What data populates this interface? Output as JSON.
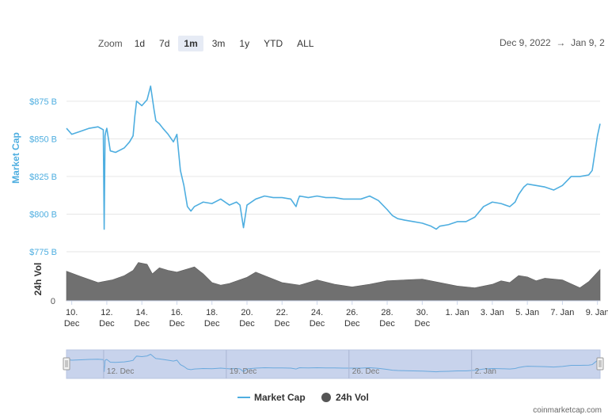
{
  "toolbar": {
    "zoom_label": "Zoom",
    "buttons": [
      "1d",
      "7d",
      "1m",
      "3m",
      "1y",
      "YTD",
      "ALL"
    ],
    "active": "1m",
    "range_start": "Dec 9, 2022",
    "range_arrow": "→",
    "range_end": "Jan 9, 2"
  },
  "footer": {
    "source": "coinmarketcap.com"
  },
  "colors": {
    "line": "#4eaee0",
    "volume": "#707070",
    "navigator_fill": "#c8d3ec",
    "navigator_line": "#6aa9dd"
  },
  "chart_data": {
    "type": "line",
    "title": "",
    "ylabel": "Market Cap",
    "ylabel_volume": "24h Vol",
    "ylim": [
      775,
      887
    ],
    "yticks": [
      775,
      800,
      825,
      850,
      875
    ],
    "ytick_labels": [
      "$775 B",
      "$800 B",
      "$825 B",
      "$850 B",
      "$875 B"
    ],
    "volume_ytick_labels": [
      "0"
    ],
    "xlim": [
      9.7,
      40.15
    ],
    "xticks": [
      {
        "x": 10,
        "l1": "10.",
        "l2": "Dec"
      },
      {
        "x": 12,
        "l1": "12.",
        "l2": "Dec"
      },
      {
        "x": 14,
        "l1": "14.",
        "l2": "Dec"
      },
      {
        "x": 16,
        "l1": "16.",
        "l2": "Dec"
      },
      {
        "x": 18,
        "l1": "18.",
        "l2": "Dec"
      },
      {
        "x": 20,
        "l1": "20.",
        "l2": "Dec"
      },
      {
        "x": 22,
        "l1": "22.",
        "l2": "Dec"
      },
      {
        "x": 24,
        "l1": "24.",
        "l2": "Dec"
      },
      {
        "x": 26,
        "l1": "26.",
        "l2": "Dec"
      },
      {
        "x": 28,
        "l1": "28.",
        "l2": "Dec"
      },
      {
        "x": 30,
        "l1": "30.",
        "l2": "Dec"
      },
      {
        "x": 32,
        "l1": "1. Jan",
        "l2": ""
      },
      {
        "x": 34,
        "l1": "3. Jan",
        "l2": ""
      },
      {
        "x": 36,
        "l1": "5. Jan",
        "l2": ""
      },
      {
        "x": 38,
        "l1": "7. Jan",
        "l2": ""
      },
      {
        "x": 40,
        "l1": "9. Jan",
        "l2": ""
      }
    ],
    "navigator_labels": [
      {
        "x": 12,
        "label": "12. Dec"
      },
      {
        "x": 19,
        "label": "19. Dec"
      },
      {
        "x": 26,
        "label": "26. Dec"
      },
      {
        "x": 33,
        "label": "2. Jan"
      }
    ],
    "legend": [
      "Market Cap",
      "24h Vol"
    ],
    "series": [
      {
        "name": "Market Cap",
        "x": [
          9.7,
          10.0,
          10.5,
          11.0,
          11.5,
          11.8,
          11.85,
          11.9,
          11.95,
          12.0,
          12.2,
          12.5,
          13.0,
          13.3,
          13.5,
          13.6,
          13.7,
          14.0,
          14.3,
          14.5,
          14.7,
          14.8,
          15.0,
          15.2,
          15.5,
          15.8,
          16.0,
          16.2,
          16.4,
          16.6,
          16.8,
          17.0,
          17.5,
          18.0,
          18.5,
          19.0,
          19.4,
          19.6,
          19.8,
          20.0,
          20.5,
          21.0,
          21.5,
          22.0,
          22.5,
          22.8,
          22.9,
          23.0,
          23.5,
          24.0,
          24.5,
          25.0,
          25.5,
          26.0,
          26.5,
          27.0,
          27.5,
          28.0,
          28.3,
          28.6,
          29.0,
          29.5,
          30.0,
          30.5,
          30.8,
          31.0,
          31.5,
          32.0,
          32.5,
          33.0,
          33.5,
          34.0,
          34.5,
          35.0,
          35.3,
          35.5,
          35.8,
          36.0,
          36.5,
          37.0,
          37.5,
          38.0,
          38.5,
          39.0,
          39.5,
          39.7,
          40.0,
          40.15
        ],
        "values": [
          857,
          853,
          855,
          857,
          858,
          856,
          790,
          852,
          855,
          857,
          842,
          841,
          844,
          848,
          852,
          865,
          875,
          872,
          876,
          885,
          869,
          862,
          860,
          857,
          853,
          848,
          853,
          829,
          819,
          805,
          802,
          805,
          808,
          807,
          810,
          806,
          808,
          806,
          791,
          806,
          810,
          812,
          811,
          811,
          810,
          805,
          809,
          812,
          811,
          812,
          811,
          811,
          810,
          810,
          810,
          812,
          809,
          803,
          799,
          797,
          796,
          795,
          794,
          792,
          790,
          792,
          793,
          795,
          795,
          798,
          805,
          808,
          807,
          805,
          808,
          813,
          818,
          820,
          819,
          818,
          816,
          819,
          825,
          825,
          826,
          829,
          852,
          860
        ]
      },
      {
        "name": "24h Vol",
        "x": [
          9.7,
          10.5,
          11.5,
          12.3,
          13.0,
          13.5,
          13.8,
          14.3,
          14.6,
          15.0,
          15.5,
          16.0,
          16.5,
          17.0,
          17.5,
          18.0,
          18.5,
          19.0,
          20.0,
          20.5,
          21.0,
          22.0,
          23.0,
          24.0,
          25.0,
          26.0,
          27.0,
          28.0,
          29.0,
          30.0,
          31.0,
          32.0,
          33.0,
          34.0,
          34.5,
          35.0,
          35.5,
          36.0,
          36.5,
          37.0,
          38.0,
          39.0,
          39.5,
          40.15
        ],
        "values": [
          0.68,
          0.56,
          0.42,
          0.48,
          0.58,
          0.7,
          0.88,
          0.84,
          0.62,
          0.76,
          0.7,
          0.66,
          0.72,
          0.78,
          0.62,
          0.42,
          0.36,
          0.4,
          0.54,
          0.66,
          0.58,
          0.42,
          0.36,
          0.48,
          0.38,
          0.32,
          0.38,
          0.46,
          0.48,
          0.5,
          0.42,
          0.34,
          0.3,
          0.38,
          0.46,
          0.42,
          0.58,
          0.55,
          0.46,
          0.52,
          0.48,
          0.3,
          0.44,
          0.72
        ]
      }
    ]
  }
}
